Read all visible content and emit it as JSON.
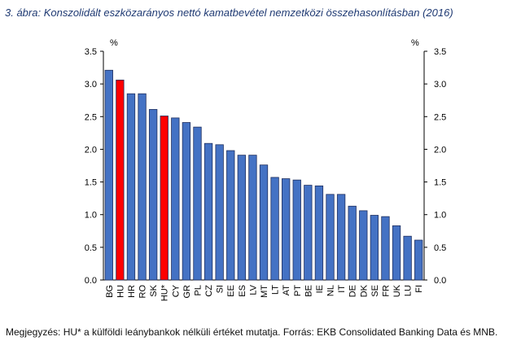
{
  "title": "3. ábra: Konszolidált eszközarányos nettó kamatbevétel nemzetközi összehasonlításban (2016)",
  "note": "Megjegyzés: HU* a külföldi leánybankok nélküli értéket mutatja. Forrás: EKB Consolidated Banking Data és MNB.",
  "colors": {
    "bar": "#4472c4",
    "highlight": "#ff0000",
    "bar_border": "#1f2f5f"
  },
  "chart_data": {
    "type": "bar",
    "title": "",
    "xlabel": "",
    "ylabel": "%",
    "ylabel_right": "%",
    "ylim": [
      0,
      3.5
    ],
    "yticks": [
      "0.0",
      "0.5",
      "1.0",
      "1.5",
      "2.0",
      "2.5",
      "3.0",
      "3.5"
    ],
    "grid": false,
    "categories": [
      "BG",
      "HU",
      "HR",
      "RO",
      "SK",
      "HU*",
      "CY",
      "GR",
      "PL",
      "CZ",
      "SI",
      "EE",
      "ES",
      "LV",
      "MT",
      "LT",
      "AT",
      "PT",
      "BE",
      "IE",
      "NL",
      "IT",
      "DE",
      "DK",
      "SE",
      "FR",
      "UK",
      "LU",
      "FI"
    ],
    "values": [
      3.21,
      3.06,
      2.85,
      2.85,
      2.61,
      2.51,
      2.48,
      2.41,
      2.34,
      2.09,
      2.07,
      1.98,
      1.91,
      1.91,
      1.76,
      1.57,
      1.55,
      1.53,
      1.45,
      1.44,
      1.31,
      1.31,
      1.13,
      1.06,
      0.99,
      0.97,
      0.83,
      0.67,
      0.61
    ],
    "highlighted": [
      "HU",
      "HU*"
    ]
  }
}
